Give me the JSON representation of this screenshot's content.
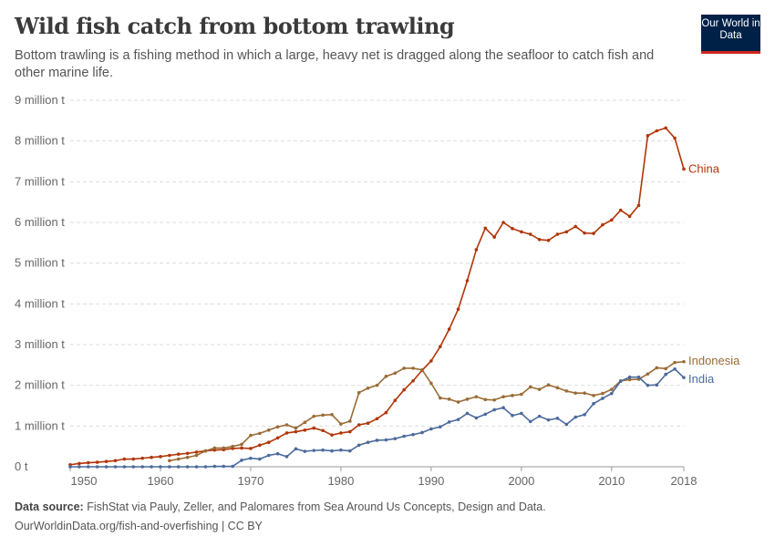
{
  "header": {
    "title": "Wild fish catch from bottom trawling",
    "subtitle": "Bottom trawling is a fishing method in which a large, heavy net is dragged along the seafloor to catch fish and other marine life.",
    "logo": "Our World in Data"
  },
  "footer": {
    "source_label": "Data source:",
    "source_text": "FishStat via Pauly, Zeller, and Palomares from Sea Around Us Concepts, Design and Data.",
    "url": "OurWorldinData.org/fish-and-overfishing | CC BY"
  },
  "chart_data": {
    "type": "line",
    "title": "Wild fish catch from bottom trawling",
    "xlabel": "",
    "ylabel": "",
    "xlim": [
      1950,
      2018
    ],
    "ylim": [
      0,
      9000000
    ],
    "grid": "horizontal dashed",
    "legend": "inline-right",
    "x_ticks": [
      "1950",
      "1960",
      "1970",
      "1980",
      "1990",
      "2000",
      "2010",
      "2018"
    ],
    "y_ticks": [
      "0 t",
      "1 million t",
      "2 million t",
      "3 million t",
      "4 million t",
      "5 million t",
      "6 million t",
      "7 million t",
      "8 million t",
      "9 million t"
    ],
    "series": [
      {
        "name": "China",
        "color": "#b13507",
        "start": 1950,
        "values": [
          0.05,
          0.08,
          0.1,
          0.11,
          0.13,
          0.15,
          0.19,
          0.19,
          0.21,
          0.23,
          0.25,
          0.28,
          0.31,
          0.33,
          0.36,
          0.39,
          0.41,
          0.42,
          0.45,
          0.46,
          0.45,
          0.53,
          0.6,
          0.71,
          0.83,
          0.86,
          0.9,
          0.95,
          0.89,
          0.78,
          0.83,
          0.86,
          1.03,
          1.07,
          1.18,
          1.33,
          1.63,
          1.89,
          2.11,
          2.37,
          2.6,
          2.95,
          3.38,
          3.87,
          4.57,
          5.33,
          5.86,
          5.64,
          6.0,
          5.85,
          5.77,
          5.71,
          5.58,
          5.56,
          5.71,
          5.77,
          5.9,
          5.74,
          5.73,
          5.94,
          6.06,
          6.3,
          6.15,
          6.42,
          8.13,
          8.25,
          8.32,
          8.07,
          7.31
        ]
      },
      {
        "name": "Indonesia",
        "color": "#9a6b35",
        "start": 1961,
        "values": [
          0.15,
          0.19,
          0.23,
          0.28,
          0.39,
          0.46,
          0.46,
          0.5,
          0.55,
          0.77,
          0.82,
          0.9,
          0.98,
          1.03,
          0.95,
          1.09,
          1.24,
          1.27,
          1.28,
          1.05,
          1.12,
          1.82,
          1.93,
          2.0,
          2.22,
          2.3,
          2.42,
          2.42,
          2.38,
          2.05,
          1.69,
          1.66,
          1.59,
          1.66,
          1.72,
          1.65,
          1.64,
          1.72,
          1.75,
          1.78,
          1.96,
          1.9,
          2.01,
          1.94,
          1.86,
          1.81,
          1.81,
          1.75,
          1.8,
          1.9,
          2.11,
          2.14,
          2.15,
          2.28,
          2.43,
          2.41,
          2.56,
          2.58
        ]
      },
      {
        "name": "India",
        "color": "#4c6a9c",
        "start": 1950,
        "values": [
          0,
          0,
          0,
          0,
          0,
          0,
          0,
          0,
          0,
          0,
          0,
          0,
          0,
          0,
          0,
          0,
          0.01,
          0.01,
          0.01,
          0.16,
          0.21,
          0.19,
          0.28,
          0.32,
          0.25,
          0.44,
          0.38,
          0.4,
          0.41,
          0.39,
          0.41,
          0.39,
          0.53,
          0.6,
          0.65,
          0.66,
          0.69,
          0.75,
          0.79,
          0.84,
          0.93,
          0.98,
          1.1,
          1.16,
          1.31,
          1.2,
          1.29,
          1.4,
          1.45,
          1.26,
          1.31,
          1.11,
          1.24,
          1.15,
          1.19,
          1.04,
          1.22,
          1.28,
          1.55,
          1.68,
          1.8,
          2.1,
          2.2,
          2.2,
          2.0,
          2.01,
          2.27,
          2.4,
          2.19
        ]
      }
    ],
    "value_unit": "million t"
  }
}
